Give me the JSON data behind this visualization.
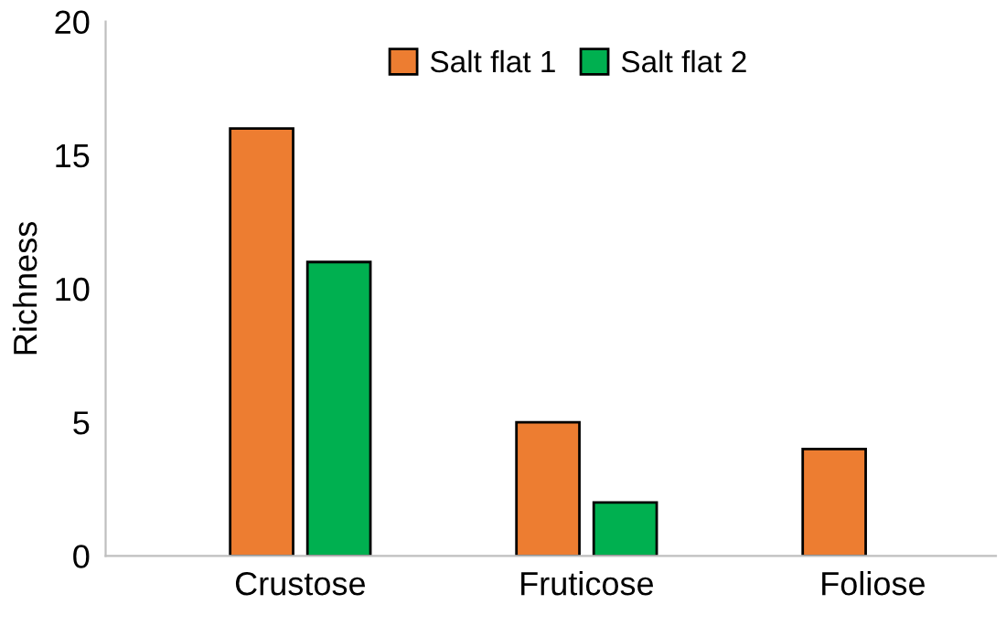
{
  "chart_data": {
    "type": "bar",
    "categories": [
      "Crustose",
      "Fruticose",
      "Foliose"
    ],
    "ylabel": "Richness",
    "series": [
      {
        "name": "Salt flat 1",
        "color": "#ed7d31",
        "values": [
          16,
          5,
          4
        ]
      },
      {
        "name": "Salt flat 2",
        "color": "#00b050",
        "values": [
          11,
          2,
          null
        ]
      }
    ],
    "ylim": [
      0,
      20
    ],
    "yticks": [
      0,
      5,
      10,
      15,
      20
    ],
    "grid": false,
    "legend": "top"
  }
}
